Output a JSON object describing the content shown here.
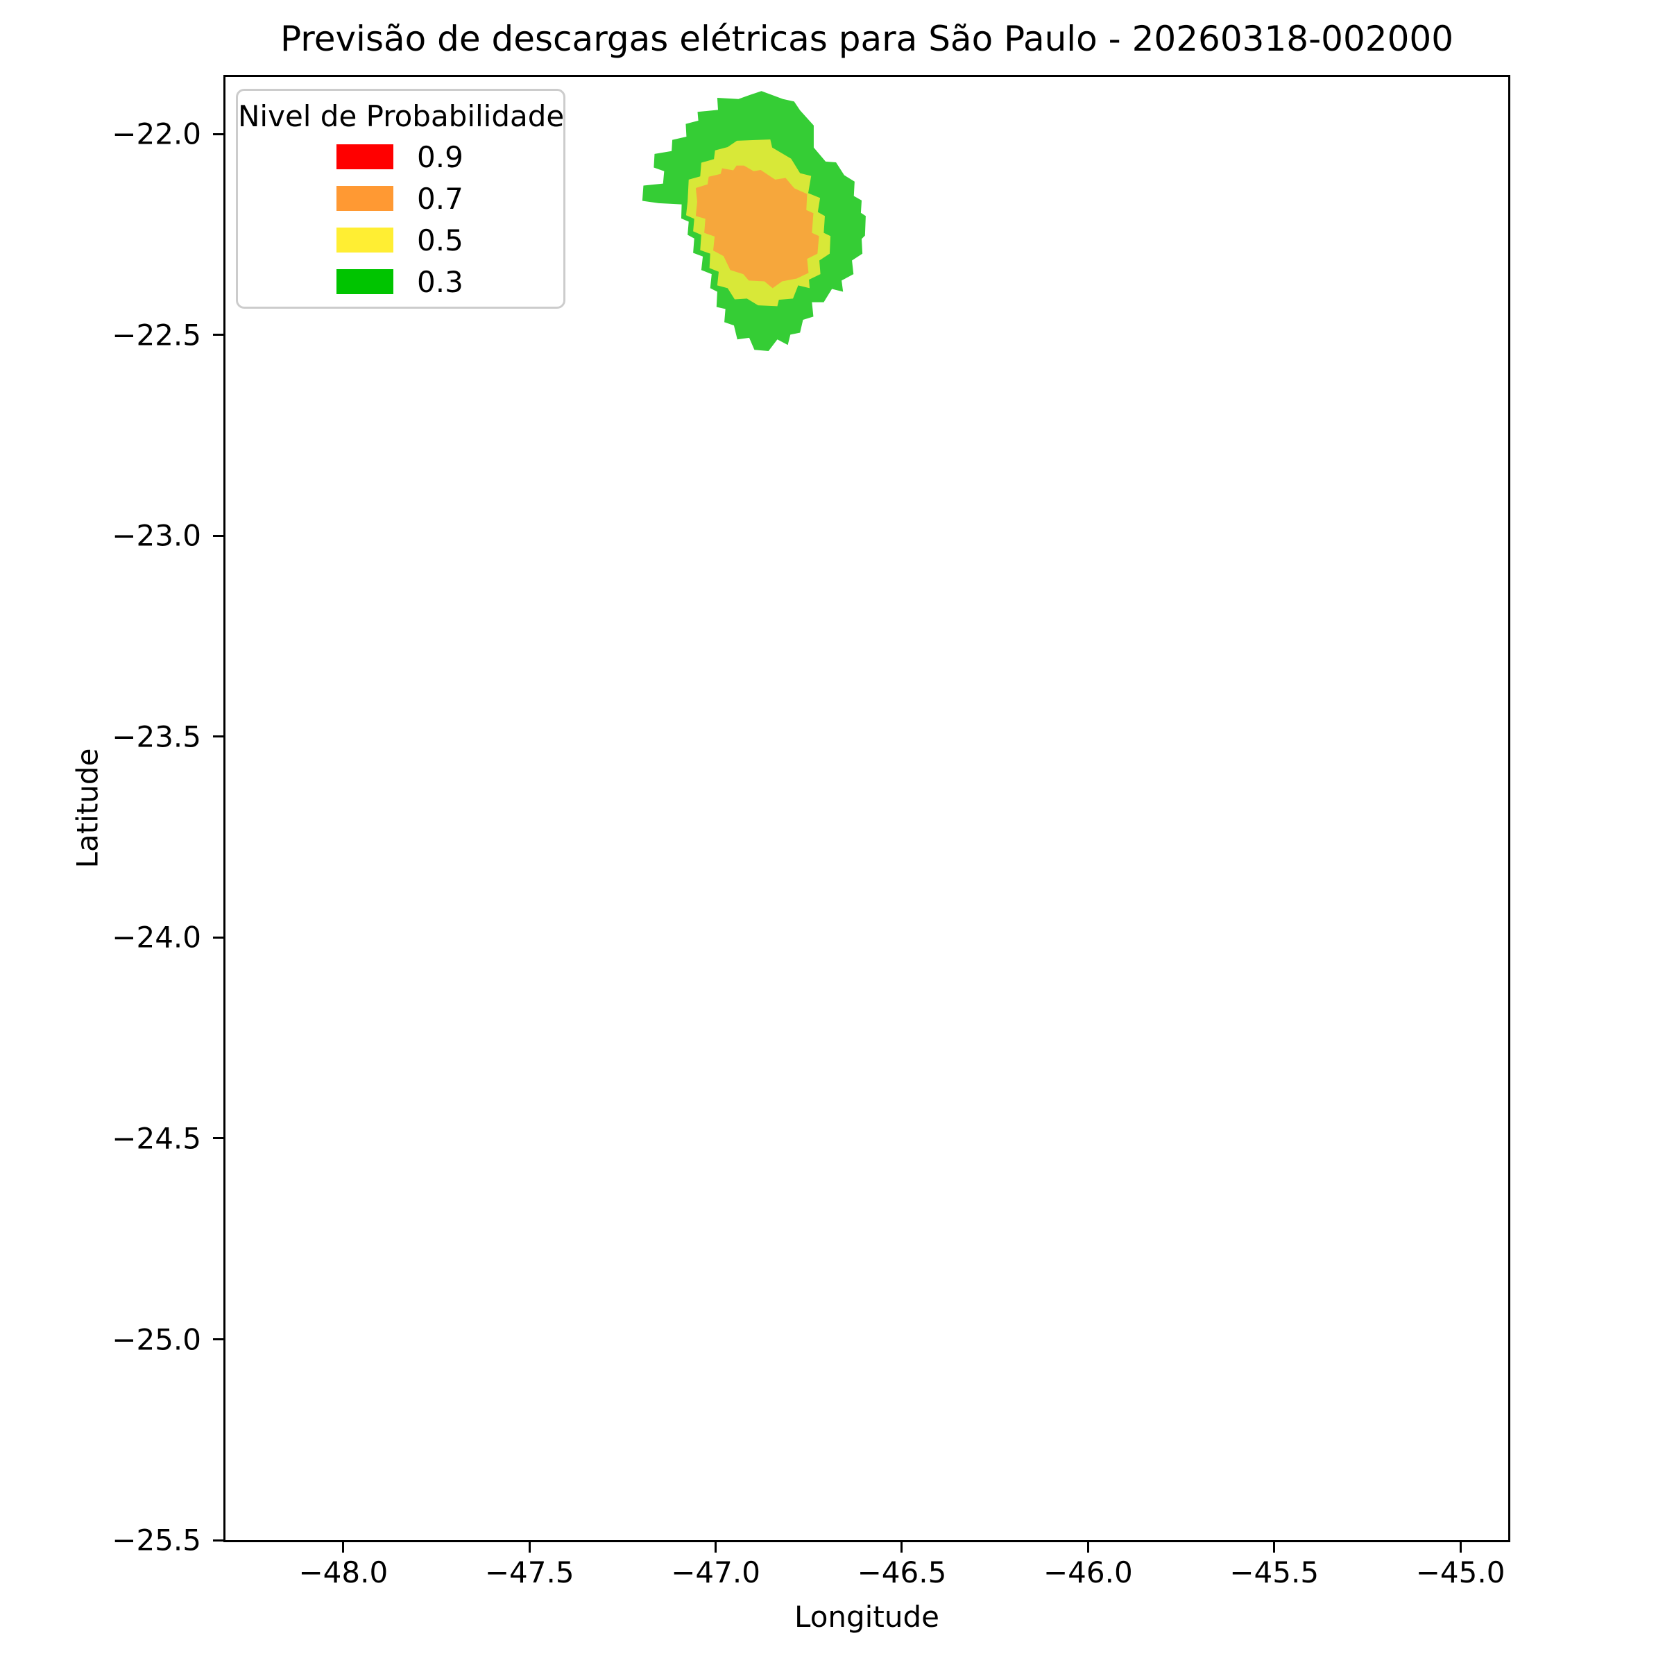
{
  "title": "Previsão de descargas elétricas para São Paulo - 20260318-002000",
  "chart_data": {
    "type": "contour",
    "title": "Previsão de descargas elétricas para São Paulo - 20260318-002000",
    "xlabel": "Longitude",
    "ylabel": "Latitude",
    "grid": false,
    "xlim": [
      -48.322,
      -44.866
    ],
    "ylim": [
      -25.505,
      -21.853
    ],
    "x_ticks": {
      "values": [
        -48.0,
        -47.5,
        -47.0,
        -46.5,
        -46.0,
        -45.5,
        -45.0
      ],
      "labels": [
        "−48.0",
        "−47.5",
        "−47.0",
        "−46.5",
        "−46.0",
        "−45.5",
        "−45.0"
      ]
    },
    "y_ticks": {
      "values": [
        -22.0,
        -22.5,
        -23.0,
        -23.5,
        -24.0,
        -24.5,
        -25.0,
        -25.5
      ],
      "labels": [
        "−22.0",
        "−22.5",
        "−23.0",
        "−23.5",
        "−24.0",
        "−24.5",
        "−25.0",
        "−25.5"
      ]
    },
    "legend": {
      "title": "Nivel de Probabilidade",
      "position": "upper left",
      "entries": [
        {
          "label": "0.9",
          "color": "#ff0000"
        },
        {
          "label": "0.7",
          "color": "#ff9933"
        },
        {
          "label": "0.5",
          "color": "#ffee33"
        },
        {
          "label": "0.3",
          "color": "#00c400"
        }
      ]
    },
    "regions": [
      {
        "level": 0.3,
        "fill": "#35cd35",
        "points": [
          [
            -46.878,
            -21.888
          ],
          [
            -46.82,
            -21.908
          ],
          [
            -46.79,
            -21.914
          ],
          [
            -46.774,
            -21.936
          ],
          [
            -46.737,
            -21.974
          ],
          [
            -46.737,
            -22.029
          ],
          [
            -46.705,
            -22.064
          ],
          [
            -46.677,
            -22.066
          ],
          [
            -46.655,
            -22.098
          ],
          [
            -46.627,
            -22.114
          ],
          [
            -46.629,
            -22.15
          ],
          [
            -46.608,
            -22.161
          ],
          [
            -46.61,
            -22.192
          ],
          [
            -46.597,
            -22.2
          ],
          [
            -46.599,
            -22.249
          ],
          [
            -46.608,
            -22.257
          ],
          [
            -46.606,
            -22.294
          ],
          [
            -46.634,
            -22.311
          ],
          [
            -46.63,
            -22.345
          ],
          [
            -46.662,
            -22.361
          ],
          [
            -46.658,
            -22.389
          ],
          [
            -46.688,
            -22.382
          ],
          [
            -46.71,
            -22.415
          ],
          [
            -46.742,
            -22.415
          ],
          [
            -46.738,
            -22.451
          ],
          [
            -46.766,
            -22.459
          ],
          [
            -46.774,
            -22.491
          ],
          [
            -46.8,
            -22.496
          ],
          [
            -46.807,
            -22.522
          ],
          [
            -46.835,
            -22.508
          ],
          [
            -46.859,
            -22.537
          ],
          [
            -46.897,
            -22.534
          ],
          [
            -46.911,
            -22.504
          ],
          [
            -46.943,
            -22.508
          ],
          [
            -46.952,
            -22.473
          ],
          [
            -46.978,
            -22.465
          ],
          [
            -46.975,
            -22.432
          ],
          [
            -46.999,
            -22.427
          ],
          [
            -46.997,
            -22.389
          ],
          [
            -47.016,
            -22.38
          ],
          [
            -47.012,
            -22.345
          ],
          [
            -47.04,
            -22.335
          ],
          [
            -47.036,
            -22.301
          ],
          [
            -47.062,
            -22.292
          ],
          [
            -47.059,
            -22.256
          ],
          [
            -47.077,
            -22.247
          ],
          [
            -47.074,
            -22.214
          ],
          [
            -47.094,
            -22.206
          ],
          [
            -47.093,
            -22.171
          ],
          [
            -47.155,
            -22.168
          ],
          [
            -47.199,
            -22.162
          ],
          [
            -47.196,
            -22.124
          ],
          [
            -47.143,
            -22.119
          ],
          [
            -47.14,
            -22.088
          ],
          [
            -47.168,
            -22.079
          ],
          [
            -47.166,
            -22.045
          ],
          [
            -47.12,
            -22.038
          ],
          [
            -47.118,
            -22.01
          ],
          [
            -47.08,
            -22.002
          ],
          [
            -47.082,
            -21.97
          ],
          [
            -47.048,
            -21.962
          ],
          [
            -47.05,
            -21.94
          ],
          [
            -46.995,
            -21.935
          ],
          [
            -46.997,
            -21.905
          ],
          [
            -46.94,
            -21.908
          ],
          [
            -46.91,
            -21.898
          ]
        ]
      },
      {
        "level": 0.5,
        "fill": "#d8e838",
        "points": [
          [
            -46.944,
            -22.012
          ],
          [
            -46.854,
            -22.009
          ],
          [
            -46.849,
            -22.029
          ],
          [
            -46.798,
            -22.057
          ],
          [
            -46.774,
            -22.093
          ],
          [
            -46.744,
            -22.1
          ],
          [
            -46.752,
            -22.143
          ],
          [
            -46.72,
            -22.155
          ],
          [
            -46.726,
            -22.19
          ],
          [
            -46.707,
            -22.2
          ],
          [
            -46.71,
            -22.242
          ],
          [
            -46.692,
            -22.25
          ],
          [
            -46.694,
            -22.294
          ],
          [
            -46.722,
            -22.311
          ],
          [
            -46.719,
            -22.345
          ],
          [
            -46.75,
            -22.359
          ],
          [
            -46.748,
            -22.38
          ],
          [
            -46.779,
            -22.373
          ],
          [
            -46.793,
            -22.406
          ],
          [
            -46.831,
            -22.409
          ],
          [
            -46.835,
            -22.425
          ],
          [
            -46.887,
            -22.423
          ],
          [
            -46.917,
            -22.406
          ],
          [
            -46.95,
            -22.408
          ],
          [
            -46.969,
            -22.38
          ],
          [
            -46.997,
            -22.373
          ],
          [
            -46.993,
            -22.339
          ],
          [
            -47.018,
            -22.33
          ],
          [
            -47.016,
            -22.294
          ],
          [
            -47.043,
            -22.285
          ],
          [
            -47.04,
            -22.247
          ],
          [
            -47.062,
            -22.238
          ],
          [
            -47.059,
            -22.207
          ],
          [
            -47.081,
            -22.198
          ],
          [
            -47.077,
            -22.164
          ],
          [
            -47.074,
            -22.109
          ],
          [
            -47.043,
            -22.101
          ],
          [
            -47.04,
            -22.067
          ],
          [
            -47.006,
            -22.058
          ],
          [
            -47.003,
            -22.036
          ],
          [
            -46.969,
            -22.028
          ]
        ]
      },
      {
        "level": 0.7,
        "fill": "#f6a73c",
        "points": [
          [
            -46.945,
            -22.074
          ],
          [
            -46.925,
            -22.074
          ],
          [
            -46.899,
            -22.088
          ],
          [
            -46.88,
            -22.085
          ],
          [
            -46.841,
            -22.109
          ],
          [
            -46.813,
            -22.105
          ],
          [
            -46.789,
            -22.131
          ],
          [
            -46.755,
            -22.145
          ],
          [
            -46.757,
            -22.185
          ],
          [
            -46.738,
            -22.193
          ],
          [
            -46.742,
            -22.242
          ],
          [
            -46.723,
            -22.25
          ],
          [
            -46.727,
            -22.294
          ],
          [
            -46.755,
            -22.307
          ],
          [
            -46.751,
            -22.342
          ],
          [
            -46.783,
            -22.356
          ],
          [
            -46.822,
            -22.363
          ],
          [
            -46.848,
            -22.38
          ],
          [
            -46.87,
            -22.363
          ],
          [
            -46.912,
            -22.361
          ],
          [
            -46.927,
            -22.345
          ],
          [
            -46.962,
            -22.335
          ],
          [
            -46.98,
            -22.3
          ],
          [
            -47.008,
            -22.286
          ],
          [
            -47.004,
            -22.251
          ],
          [
            -47.032,
            -22.242
          ],
          [
            -47.029,
            -22.207
          ],
          [
            -47.055,
            -22.2
          ],
          [
            -47.051,
            -22.164
          ],
          [
            -47.055,
            -22.13
          ],
          [
            -47.023,
            -22.121
          ],
          [
            -47.02,
            -22.102
          ],
          [
            -46.988,
            -22.095
          ],
          [
            -46.984,
            -22.081
          ],
          [
            -46.954,
            -22.086
          ]
        ]
      }
    ]
  }
}
